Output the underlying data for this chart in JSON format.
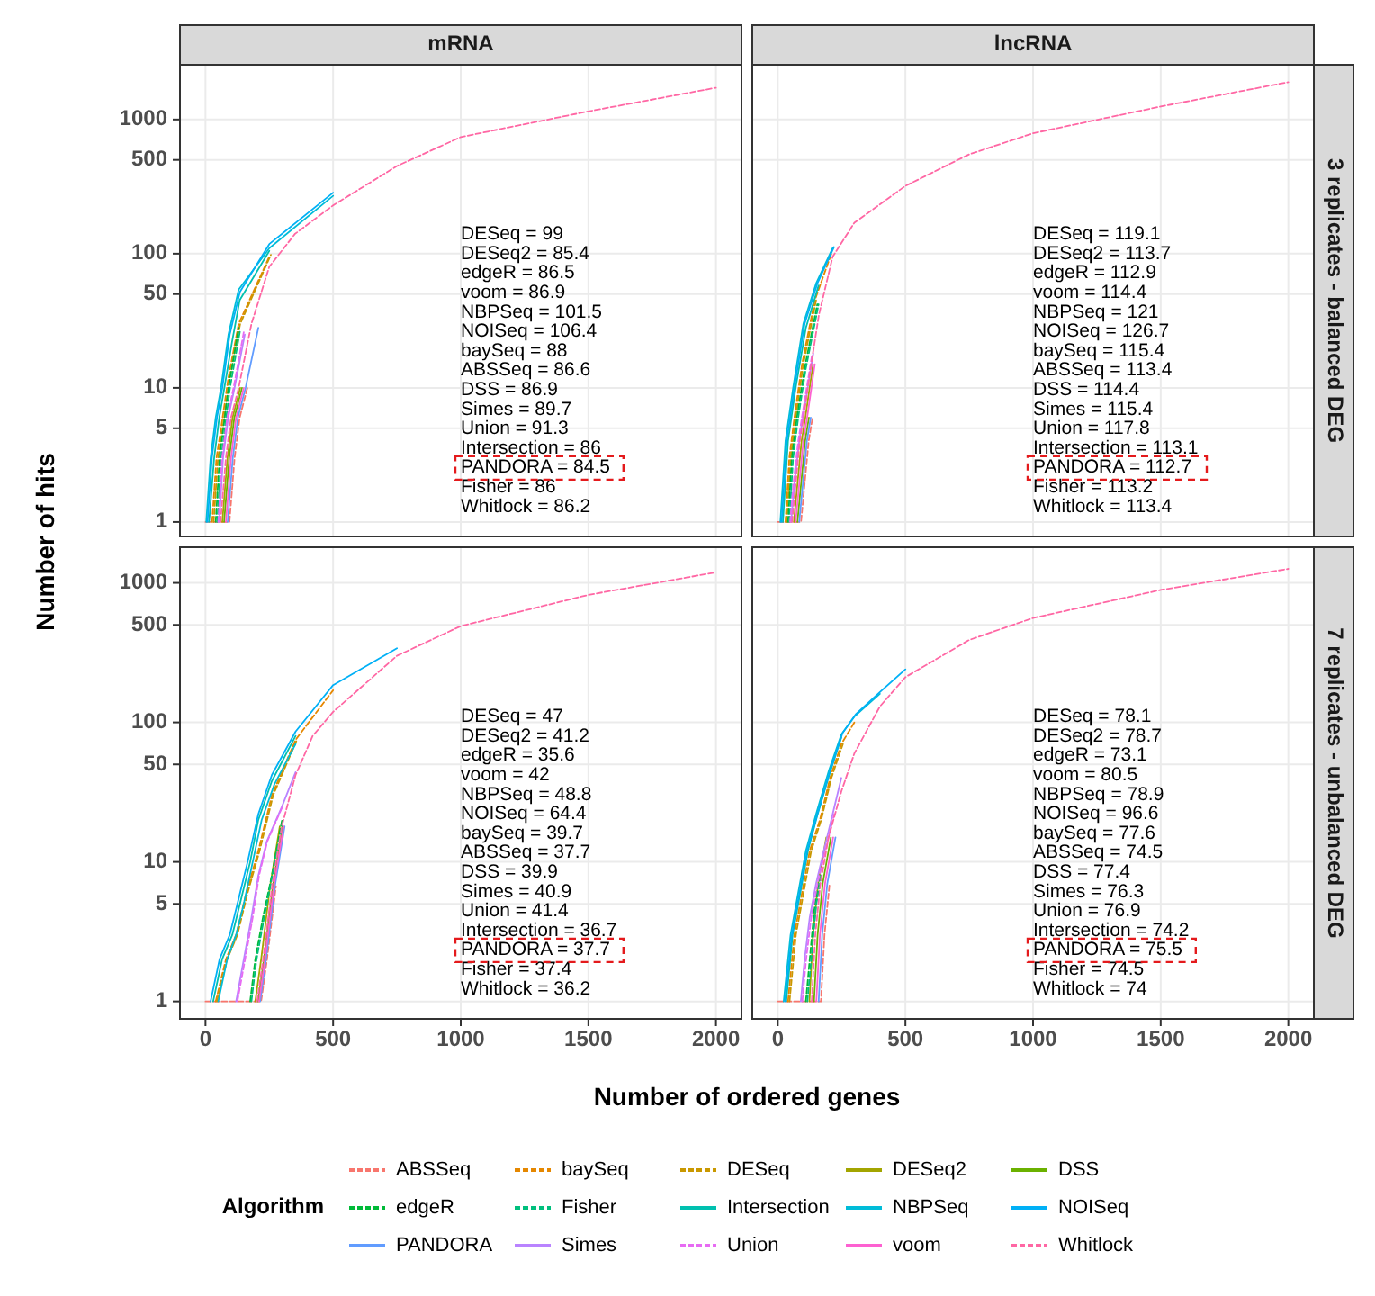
{
  "chart_data": [
    {
      "type": "line",
      "title": "mRNA",
      "ylabel": "Number of hits",
      "legend_title": "Algorithm",
      "legend": "bottom",
      "log": "y",
      "grid": true,
      "tick_labels": "y",
      "xlim": [
        -100,
        2100
      ],
      "ylim": [
        0.78,
        2560
      ],
      "xticks": [
        0,
        500,
        1000,
        1500,
        2000
      ],
      "yticks": [
        1,
        5,
        10,
        50,
        100,
        500,
        1000
      ],
      "annotations": [
        "DESeq = 99",
        "DESeq2 = 85.4",
        "edgeR = 86.5",
        "voom = 86.9",
        "NBPSeq = 101.5",
        "NOISeq = 106.4",
        "baySeq = 88",
        "ABSSeq = 86.6",
        "DSS = 86.9",
        "Simes = 89.7",
        "Union = 91.3",
        "Intersection = 86",
        "PANDORA = 84.5",
        "Fisher = 86",
        "Whitlock = 86.2"
      ],
      "series": [
        {
          "name": "ABSSeq",
          "color": "#F8766D",
          "line_style": "dashed",
          "x": [
            0,
            94,
            114,
            134,
            164
          ],
          "values": [
            1,
            1,
            3,
            6,
            10
          ]
        },
        {
          "name": "baySeq",
          "color": "#E58700",
          "line_style": "dashed",
          "x": [
            26,
            43,
            61,
            90,
            130,
            250
          ],
          "values": [
            1,
            3,
            5,
            12,
            30,
            95
          ]
        },
        {
          "name": "DESeq",
          "color": "#C99800",
          "line_style": "dashed",
          "x": [
            32,
            49,
            67,
            96,
            136,
            256
          ],
          "values": [
            1,
            3,
            5,
            12,
            30,
            98
          ]
        },
        {
          "name": "DESeq2",
          "color": "#A3A500",
          "line_style": "solid",
          "x": [
            66,
            86,
            106,
            136
          ],
          "values": [
            1,
            3,
            6,
            10
          ]
        },
        {
          "name": "DSS",
          "color": "#6BB100",
          "line_style": "solid",
          "x": [
            73,
            93,
            113,
            143
          ],
          "values": [
            1,
            3,
            6,
            10
          ]
        },
        {
          "name": "edgeR",
          "color": "#00BA38",
          "line_style": "dashed",
          "x": [
            40,
            55,
            70,
            90,
            130
          ],
          "values": [
            1,
            3,
            5,
            10,
            28
          ]
        },
        {
          "name": "Fisher",
          "color": "#00BF7D",
          "line_style": "dashed",
          "x": [
            46,
            61,
            76,
            96,
            136
          ],
          "values": [
            1,
            3,
            5,
            10,
            27
          ]
        },
        {
          "name": "Intersection",
          "color": "#00C0AF",
          "line_style": "solid",
          "x": [
            14,
            34,
            54,
            74,
            104,
            134,
            250
          ],
          "values": [
            1,
            3,
            6,
            10,
            22,
            45,
            105
          ]
        },
        {
          "name": "NBPSeq",
          "color": "#00BCD8",
          "line_style": "solid",
          "x": [
            3,
            20,
            40,
            61,
            90,
            130,
            250,
            500
          ],
          "values": [
            1,
            3,
            6,
            10,
            25,
            54,
            110,
            270
          ]
        },
        {
          "name": "NOISeq",
          "color": "#00B0F6",
          "line_style": "solid",
          "x": [
            8,
            25,
            45,
            66,
            95,
            135,
            250,
            500
          ],
          "values": [
            1,
            3,
            6,
            10,
            25,
            52,
            118,
            285
          ]
        },
        {
          "name": "PANDORA",
          "color": "#619CFF",
          "line_style": "solid",
          "x": [
            87,
            107,
            127,
            157,
            207
          ],
          "values": [
            1,
            3,
            6,
            10,
            28
          ]
        },
        {
          "name": "Simes",
          "color": "#B983FF",
          "line_style": "solid",
          "x": [
            54,
            69,
            89,
            114,
            154
          ],
          "values": [
            1,
            3,
            6,
            10,
            25
          ]
        },
        {
          "name": "Union",
          "color": "#E76BF3",
          "line_style": "dashed",
          "x": [
            50,
            65,
            85,
            110,
            150
          ],
          "values": [
            1,
            3,
            6,
            10,
            26
          ]
        },
        {
          "name": "voom",
          "color": "#FD61D1",
          "line_style": "solid",
          "x": [
            80,
            100,
            120,
            150
          ],
          "values": [
            1,
            3,
            6,
            10
          ]
        },
        {
          "name": "Whitlock",
          "color": "#FF67A4",
          "line_style": "dashed",
          "x": [
            59,
            80,
            100,
            130,
            180,
            250,
            350,
            500,
            750,
            1000,
            1500,
            2000
          ],
          "values": [
            1,
            3,
            6,
            10,
            30,
            80,
            140,
            229,
            450,
            740,
            1150,
            1725
          ]
        }
      ]
    },
    {
      "type": "line",
      "title": "lncRNA",
      "subtitle": "3 replicates - balanced DEG",
      "log": "y",
      "grid": true,
      "tick_labels": false,
      "xlim": [
        -100,
        2100
      ],
      "ylim": [
        0.78,
        2560
      ],
      "xticks": [
        0,
        500,
        1000,
        1500,
        2000
      ],
      "yticks": [
        1,
        5,
        10,
        50,
        100,
        500,
        1000
      ],
      "annotations": [
        "DESeq = 119.1",
        "DESeq2 = 113.7",
        "edgeR = 112.9",
        "voom = 114.4",
        "NBPSeq = 121",
        "NOISeq = 126.7",
        "baySeq = 115.4",
        "ABSSeq = 113.4",
        "DSS = 114.4",
        "Simes = 115.4",
        "Union = 117.8",
        "Intersection = 113.1",
        "PANDORA = 112.7",
        "Fisher = 113.2",
        "Whitlock = 113.4"
      ],
      "series": [
        {
          "color": "#F8766D",
          "line_style": "dashed",
          "x": [
            0,
            91,
            106,
            121,
            136
          ],
          "values": [
            1,
            1,
            2,
            4,
            6
          ]
        },
        {
          "color": "#E58700",
          "line_style": "dashed",
          "x": [
            30,
            45,
            65,
            95,
            145,
            210
          ],
          "values": [
            1,
            3,
            6,
            15,
            45,
            100
          ]
        },
        {
          "color": "#C99800",
          "line_style": "dashed",
          "x": [
            35,
            50,
            70,
            100,
            150
          ],
          "values": [
            1,
            3,
            6,
            15,
            45
          ]
        },
        {
          "color": "#A3A500",
          "line_style": "solid",
          "x": [
            63,
            78,
            93,
            108,
            138
          ],
          "values": [
            1,
            2,
            4,
            6,
            15
          ]
        },
        {
          "color": "#6BB100",
          "line_style": "solid",
          "x": [
            77,
            92,
            107,
            122
          ],
          "values": [
            1,
            2,
            4,
            6
          ]
        },
        {
          "color": "#00BA38",
          "line_style": "dashed",
          "x": [
            40,
            55,
            75,
            105,
            155
          ],
          "values": [
            1,
            3,
            6,
            14,
            42
          ]
        },
        {
          "color": "#00BF7D",
          "line_style": "dashed",
          "x": [
            45,
            60,
            80,
            110,
            160
          ],
          "values": [
            1,
            3,
            6,
            14,
            42
          ]
        },
        {
          "color": "#00C0AF",
          "line_style": "solid",
          "x": [
            20,
            40,
            70,
            110,
            160
          ],
          "values": [
            1,
            4,
            10,
            28,
            58
          ]
        },
        {
          "color": "#00BCD8",
          "line_style": "solid",
          "x": [
            10,
            30,
            60,
            100,
            150,
            215
          ],
          "values": [
            1,
            4,
            10,
            30,
            60,
            110
          ]
        },
        {
          "color": "#00B0F6",
          "line_style": "solid",
          "x": [
            15,
            35,
            65,
            105,
            155,
            220
          ],
          "values": [
            1,
            4,
            10,
            30,
            60,
            112
          ]
        },
        {
          "color": "#619CFF",
          "line_style": "solid",
          "x": [
            84,
            99,
            114,
            129
          ],
          "values": [
            1,
            2,
            4,
            6
          ]
        },
        {
          "color": "#B983FF",
          "line_style": "solid",
          "x": [
            52,
            66,
            84,
            104,
            139
          ],
          "values": [
            1,
            2,
            4,
            7,
            18
          ]
        },
        {
          "color": "#E76BF3",
          "line_style": "dashed",
          "x": [
            48,
            62,
            80,
            100,
            135
          ],
          "values": [
            1,
            2,
            4,
            7,
            18
          ]
        },
        {
          "color": "#FD61D1",
          "line_style": "solid",
          "x": [
            70,
            85,
            100,
            115,
            145
          ],
          "values": [
            1,
            2,
            4,
            6,
            15
          ]
        },
        {
          "color": "#FF67A4",
          "line_style": "dashed",
          "x": [
            56,
            71,
            86,
            101,
            131,
            161,
            215,
            300,
            500,
            750,
            1000,
            1500,
            2000
          ],
          "values": [
            1,
            2,
            4,
            6,
            15,
            35,
            95,
            170,
            320,
            550,
            790,
            1250,
            1900
          ]
        }
      ]
    },
    {
      "type": "line",
      "xlabel": "Number of ordered genes",
      "log": "y",
      "grid": true,
      "xlim": [
        -100,
        2100
      ],
      "ylim": [
        0.75,
        1800
      ],
      "xticks": [
        0,
        500,
        1000,
        1500,
        2000
      ],
      "yticks": [
        1,
        5,
        10,
        50,
        100,
        500,
        1000
      ],
      "annotations": [
        "DESeq = 47",
        "DESeq2 = 41.2",
        "edgeR = 35.6",
        "voom = 42",
        "NBPSeq = 48.8",
        "NOISeq = 64.4",
        "baySeq = 39.7",
        "ABSSeq = 37.7",
        "DSS = 39.9",
        "Simes = 40.9",
        "Union = 41.4",
        "Intersection = 36.7",
        "PANDORA = 37.7",
        "Fisher = 37.4",
        "Whitlock = 36.2"
      ],
      "series": [
        {
          "color": "#F8766D",
          "line_style": "dashed",
          "x": [
            0,
            218,
            241,
            276
          ],
          "values": [
            1,
            1,
            2,
            6.7
          ]
        },
        {
          "color": "#E58700",
          "line_style": "dashed",
          "x": [
            40,
            80,
            120,
            160,
            207,
            260,
            353,
            500
          ],
          "values": [
            1,
            2,
            3,
            6,
            12,
            30,
            75,
            170
          ]
        },
        {
          "color": "#C99800",
          "line_style": "dashed",
          "x": [
            45,
            85,
            125,
            165,
            212,
            265,
            358
          ],
          "values": [
            1,
            2,
            3,
            6,
            12,
            30,
            75
          ]
        },
        {
          "color": "#A3A500",
          "line_style": "solid",
          "x": [
            195,
            218,
            253,
            291
          ],
          "values": [
            1,
            2,
            6.7,
            18
          ]
        },
        {
          "color": "#6BB100",
          "line_style": "solid",
          "x": [
            206,
            229,
            264,
            302
          ],
          "values": [
            1,
            2,
            6.7,
            18
          ]
        },
        {
          "color": "#00BA38",
          "line_style": "dashed",
          "x": [
            175,
            195,
            225,
            260,
            300
          ],
          "values": [
            1,
            2,
            4,
            8,
            20
          ]
        },
        {
          "color": "#00BF7D",
          "line_style": "dashed",
          "x": [
            180,
            200,
            230,
            262,
            302
          ],
          "values": [
            1,
            2,
            4,
            8,
            19
          ]
        },
        {
          "color": "#00C0AF",
          "line_style": "solid",
          "x": [
            30,
            65,
            105,
            135,
            175,
            207,
            260,
            353
          ],
          "values": [
            1,
            2,
            3,
            5,
            10,
            20,
            38,
            80
          ]
        },
        {
          "color": "#00BCD8",
          "line_style": "solid",
          "x": [
            50,
            85,
            120,
            150,
            185,
            220,
            270,
            353
          ],
          "values": [
            1,
            2,
            3,
            5,
            10,
            20,
            36,
            70
          ]
        },
        {
          "color": "#00B0F6",
          "line_style": "solid",
          "x": [
            20,
            55,
            95,
            125,
            165,
            207,
            260,
            353,
            500,
            750
          ],
          "values": [
            1,
            2,
            3,
            5,
            10,
            22,
            42,
            86,
            185,
            340
          ]
        },
        {
          "color": "#619CFF",
          "line_style": "solid",
          "x": [
            214,
            237,
            272,
            310
          ],
          "values": [
            1,
            2,
            6.7,
            18
          ]
        },
        {
          "color": "#B983FF",
          "line_style": "solid",
          "x": [
            120,
            150,
            180,
            207,
            240,
            300,
            353
          ],
          "values": [
            1,
            2,
            4,
            8,
            14,
            25,
            44
          ]
        },
        {
          "color": "#E76BF3",
          "line_style": "dashed",
          "x": [
            125,
            155,
            185,
            210,
            242,
            302
          ],
          "values": [
            1,
            2,
            4,
            8,
            14,
            25
          ]
        },
        {
          "color": "#FD61D1",
          "line_style": "solid",
          "x": [
            210,
            233,
            268,
            306
          ],
          "values": [
            1,
            2,
            6.7,
            18
          ]
        },
        {
          "color": "#FF67A4",
          "line_style": "dashed",
          "x": [
            202,
            226,
            261,
            299,
            353,
            420,
            500,
            750,
            1000,
            1500,
            2000
          ],
          "values": [
            1,
            2,
            6.7,
            18,
            42,
            80,
            119,
            300,
            490,
            820,
            1190
          ]
        }
      ]
    },
    {
      "type": "line",
      "subtitle": "7 replicates - unbalanced DEG",
      "log": "y",
      "grid": true,
      "tick_labels": "x",
      "xlim": [
        -100,
        2100
      ],
      "ylim": [
        0.75,
        1800
      ],
      "xticks": [
        0,
        500,
        1000,
        1500,
        2000
      ],
      "yticks": [
        1,
        5,
        10,
        50,
        100,
        500,
        1000
      ],
      "annotations": [
        "DESeq = 78.1",
        "DESeq2 = 78.7",
        "edgeR = 73.1",
        "voom = 80.5",
        "NBPSeq = 78.9",
        "NOISeq = 96.6",
        "baySeq = 77.6",
        "ABSSeq = 74.5",
        "DSS = 77.4",
        "Simes = 76.3",
        "Union = 76.9",
        "Intersection = 74.2",
        "PANDORA = 75.5",
        "Fisher = 74.5",
        "Whitlock = 74"
      ],
      "series": [
        {
          "color": "#F8766D",
          "line_style": "dashed",
          "x": [
            0,
            169,
            183,
            203
          ],
          "values": [
            1,
            1,
            3,
            7
          ]
        },
        {
          "color": "#E58700",
          "line_style": "dashed",
          "x": [
            40,
            65,
            95,
            125,
            165,
            205,
            249,
            300
          ],
          "values": [
            1,
            3,
            6,
            12,
            20,
            40,
            70,
            100
          ]
        },
        {
          "color": "#C99800",
          "line_style": "dashed",
          "x": [
            46,
            71,
            101,
            131,
            170,
            210,
            255
          ],
          "values": [
            1,
            3,
            6,
            12,
            20,
            40,
            70
          ]
        },
        {
          "color": "#A3A500",
          "line_style": "solid",
          "x": [
            124,
            138,
            158,
            190
          ],
          "values": [
            1,
            3,
            7,
            15
          ]
        },
        {
          "color": "#6BB100",
          "line_style": "solid",
          "x": [
            142,
            156,
            176,
            208
          ],
          "values": [
            1,
            3,
            7,
            15
          ]
        },
        {
          "color": "#00BA38",
          "line_style": "dashed",
          "x": [
            110,
            125,
            145,
            165
          ],
          "values": [
            1,
            2,
            5,
            8
          ]
        },
        {
          "color": "#00BF7D",
          "line_style": "dashed",
          "x": [
            116,
            131,
            151,
            171
          ],
          "values": [
            1,
            2,
            5,
            8
          ]
        },
        {
          "color": "#00C0AF",
          "line_style": "solid",
          "x": [
            33,
            58,
            88,
            118,
            153,
            203,
            249
          ],
          "values": [
            1,
            3,
            6,
            12,
            21,
            43,
            78
          ]
        },
        {
          "color": "#00BCD8",
          "line_style": "solid",
          "x": [
            23,
            50,
            80,
            110,
            150,
            200,
            249,
            300,
            400
          ],
          "values": [
            1,
            3,
            6,
            12,
            22,
            45,
            82,
            110,
            160
          ]
        },
        {
          "color": "#00B0F6",
          "line_style": "solid",
          "x": [
            28,
            55,
            85,
            115,
            155,
            205,
            254,
            305,
            405,
            500
          ],
          "values": [
            1,
            3,
            6,
            12,
            22,
            45,
            84,
            114,
            168,
            240
          ]
        },
        {
          "color": "#619CFF",
          "line_style": "solid",
          "x": [
            160,
            174,
            194,
            226
          ],
          "values": [
            1,
            3,
            7,
            15
          ]
        },
        {
          "color": "#B983FF",
          "line_style": "solid",
          "x": [
            90,
            105,
            125,
            150,
            180,
            215,
            249
          ],
          "values": [
            1,
            2,
            4,
            7,
            12,
            22,
            40
          ]
        },
        {
          "color": "#E76BF3",
          "line_style": "dashed",
          "x": [
            96,
            111,
            131,
            156,
            186,
            221
          ],
          "values": [
            1,
            2,
            4,
            7,
            12,
            22
          ]
        },
        {
          "color": "#FD61D1",
          "line_style": "solid",
          "x": [
            151,
            165,
            185,
            217
          ],
          "values": [
            1,
            3,
            7,
            15
          ]
        },
        {
          "color": "#FF67A4",
          "line_style": "dashed",
          "x": [
            133,
            147,
            167,
            199,
            249,
            300,
            400,
            500,
            750,
            1000,
            1500,
            2000
          ],
          "values": [
            1,
            3,
            7,
            15,
            32,
            60,
            130,
            211,
            390,
            560,
            890,
            1260
          ]
        }
      ]
    }
  ]
}
